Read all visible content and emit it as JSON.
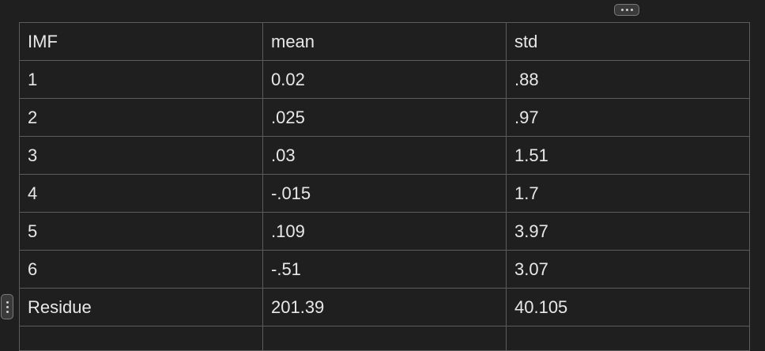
{
  "table": {
    "columns": [
      "IMF",
      "mean",
      "std"
    ],
    "rows": [
      [
        "1",
        "0.02",
        ".88"
      ],
      [
        "2",
        ".025",
        ".97"
      ],
      [
        "3",
        ".03",
        "1.51"
      ],
      [
        "4",
        "-.015",
        "1.7"
      ],
      [
        "5",
        ".109",
        "3.97"
      ],
      [
        "6",
        "-.51",
        "3.07"
      ],
      [
        "Residue",
        "201.39",
        "40.105"
      ],
      [
        "",
        "",
        ""
      ]
    ]
  }
}
